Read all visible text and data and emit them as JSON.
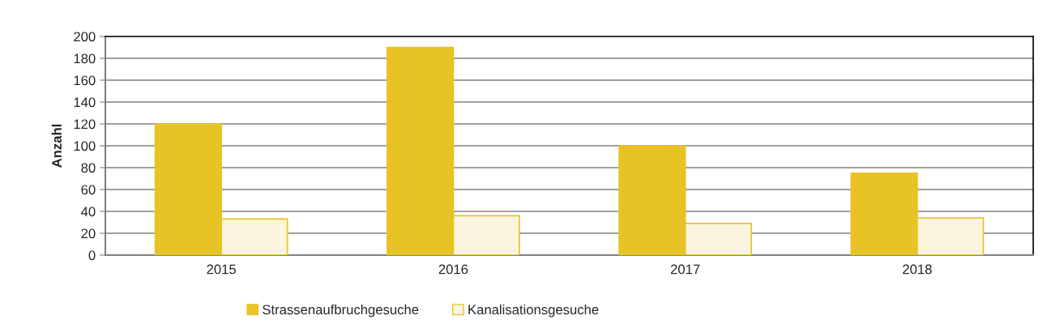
{
  "chart_data": {
    "type": "bar",
    "ylabel": "Anzahl",
    "categories": [
      "2015",
      "2016",
      "2017",
      "2018"
    ],
    "series": [
      {
        "name": "Strassenaufbruchgesuche",
        "color": "#e8c325",
        "values": [
          120,
          190,
          100,
          75
        ]
      },
      {
        "name": "Kanalisationsgesuche",
        "color": "#fbf5df",
        "values": [
          33,
          36,
          29,
          34
        ]
      }
    ],
    "ylim": [
      0,
      200
    ],
    "yticks": [
      0,
      20,
      40,
      60,
      80,
      100,
      120,
      140,
      160,
      180,
      200
    ],
    "grid": "y",
    "legend": "bottom"
  }
}
